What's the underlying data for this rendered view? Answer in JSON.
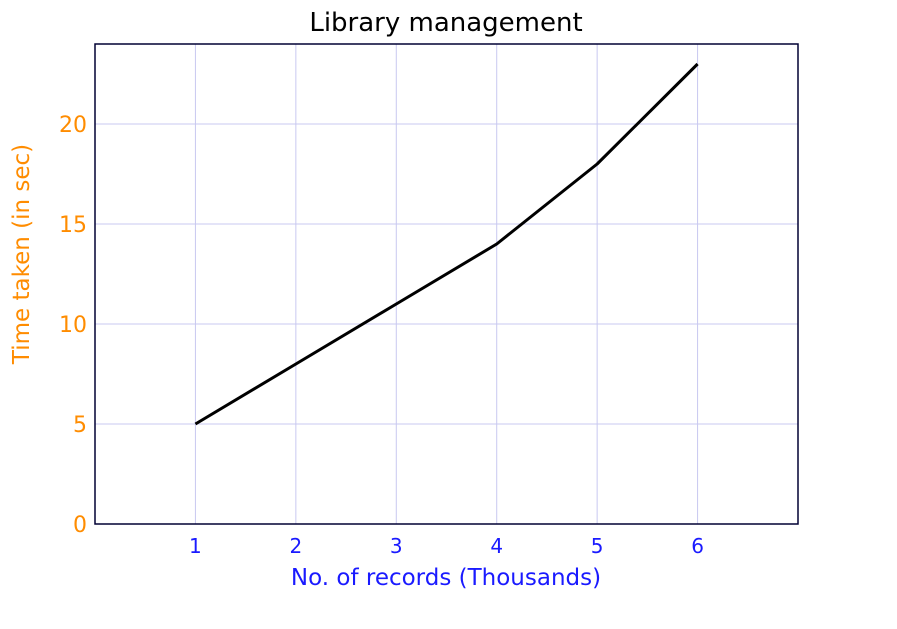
{
  "chart_data": {
    "type": "line",
    "title": "Library management",
    "xlabel": "No. of records (Thousands)",
    "ylabel": "Time taken (in sec)",
    "x": [
      1,
      2,
      3,
      4,
      5,
      6
    ],
    "series": [
      {
        "values": [
          5,
          8,
          11,
          14,
          18,
          23
        ]
      }
    ],
    "xlim": [
      0,
      7
    ],
    "ylim": [
      0,
      24
    ],
    "xticks": [
      1,
      2,
      3,
      4,
      5,
      6
    ],
    "yticks": [
      0,
      5,
      10,
      15,
      20
    ],
    "grid": true,
    "legend": "none",
    "colors": {
      "line": "#000000",
      "grid": "#c8c8f0",
      "frame": "#000033",
      "x_axis_text": "#1a1aff",
      "y_axis_text": "#ff8c00",
      "title_text": "#000000"
    }
  }
}
